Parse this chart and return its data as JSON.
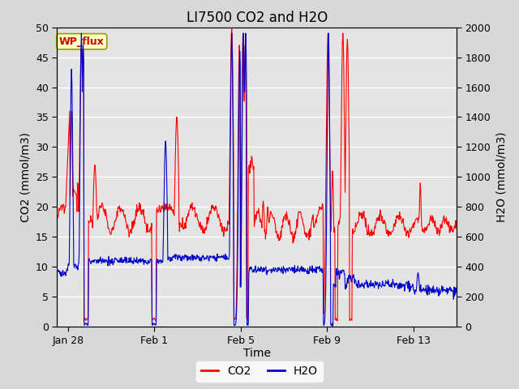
{
  "title": "LI7500 CO2 and H2O",
  "xlabel": "Time",
  "ylabel_left": "CO2 (mmol/m3)",
  "ylabel_right": "H2O (mmol/m3)",
  "ylim_left": [
    0,
    50
  ],
  "ylim_right": [
    0,
    2000
  ],
  "yticks_left": [
    0,
    5,
    10,
    15,
    20,
    25,
    30,
    35,
    40,
    45,
    50
  ],
  "yticks_right": [
    0,
    200,
    400,
    600,
    800,
    1000,
    1200,
    1400,
    1600,
    1800,
    2000
  ],
  "fig_bg_color": "#d8d8d8",
  "plot_bg_color": "#e4e4e4",
  "grid_color": "#ffffff",
  "co2_color": "#ff0000",
  "h2o_color": "#0000cc",
  "annotation_text": "WP_flux",
  "annotation_color": "#cc0000",
  "annotation_bg": "#ffffcc",
  "annotation_border": "#999900",
  "title_fontsize": 12,
  "axis_label_fontsize": 10,
  "tick_fontsize": 9,
  "legend_fontsize": 10,
  "xtick_labels": [
    "Jan 28",
    "Feb 1",
    "Feb 5",
    "Feb 9",
    "Feb 13"
  ]
}
